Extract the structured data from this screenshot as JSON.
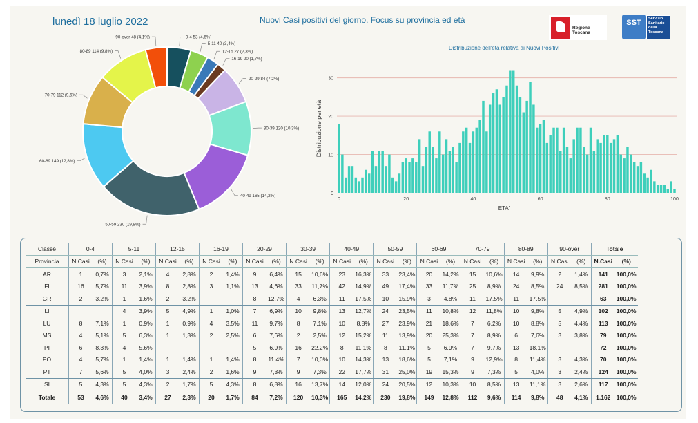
{
  "header": {
    "date": "lunedì 18 luglio 2022",
    "title": "Nuovi Casi positivi del giorno. Focus su provincia ed età",
    "logo_rt_label": "Regione Toscana",
    "logo_sst_mark": "SST",
    "logo_sst_name": [
      "Servizio",
      "Sanitario",
      "della",
      "Toscana"
    ]
  },
  "colors": {
    "accent": "#1e6e9e",
    "bar": "#3ecfbb",
    "grid": "#e7b7b0"
  },
  "chart_data": [
    {
      "type": "pie",
      "title": "",
      "slices": [
        {
          "label": "0-4 53 (4,6%)",
          "value": 53,
          "color": "#16505e"
        },
        {
          "label": "5-11 40 (3,4%)",
          "value": 40,
          "color": "#8ed14f"
        },
        {
          "label": "12-15 27 (2,3%)",
          "value": 27,
          "color": "#3a79b8"
        },
        {
          "label": "16-19 20 (1,7%)",
          "value": 20,
          "color": "#6a3a21"
        },
        {
          "label": "20-29 84 (7,2%)",
          "value": 84,
          "color": "#c9b4e6"
        },
        {
          "label": "30-39 120 (10,3%)",
          "value": 120,
          "color": "#7ee7cf"
        },
        {
          "label": "40-49 165 (14,2%)",
          "value": 165,
          "color": "#9b5ed8"
        },
        {
          "label": "50-59 230 (19,8%)",
          "value": 230,
          "color": "#40626b"
        },
        {
          "label": "60-69 149 (12,8%)",
          "value": 149,
          "color": "#4dc9f1"
        },
        {
          "label": "70-79 112 (9,6%)",
          "value": 112,
          "color": "#d9b04b"
        },
        {
          "label": "80-89 114 (9,8%)",
          "value": 114,
          "color": "#e4f44a"
        },
        {
          "label": "90-over 48 (4,1%)",
          "value": 48,
          "color": "#f24f0a"
        }
      ]
    },
    {
      "type": "bar",
      "title": "Distribuzione dell'età relativa ai Nuovi Positivi",
      "xlabel": "ETA'",
      "ylabel": "Distribuzione per età",
      "xlim": [
        0,
        100
      ],
      "ylim": [
        0,
        33
      ],
      "xticks": [
        0,
        20,
        40,
        60,
        80,
        100
      ],
      "yticks": [
        0,
        10,
        20,
        30
      ],
      "x": [
        0,
        1,
        2,
        3,
        4,
        5,
        6,
        7,
        8,
        9,
        10,
        11,
        12,
        13,
        14,
        15,
        16,
        17,
        18,
        19,
        20,
        21,
        22,
        23,
        24,
        25,
        26,
        27,
        28,
        29,
        30,
        31,
        32,
        33,
        34,
        35,
        36,
        37,
        38,
        39,
        40,
        41,
        42,
        43,
        44,
        45,
        46,
        47,
        48,
        49,
        50,
        51,
        52,
        53,
        54,
        55,
        56,
        57,
        58,
        59,
        60,
        61,
        62,
        63,
        64,
        65,
        66,
        67,
        68,
        69,
        70,
        71,
        72,
        73,
        74,
        75,
        76,
        77,
        78,
        79,
        80,
        81,
        82,
        83,
        84,
        85,
        86,
        87,
        88,
        89,
        90,
        91,
        92,
        93,
        94,
        95,
        96,
        97,
        98,
        99,
        100
      ],
      "values": [
        18,
        10,
        4,
        7,
        7,
        4,
        3,
        4,
        6,
        5,
        11,
        7,
        11,
        11,
        7,
        10,
        4,
        3,
        5,
        8,
        9,
        8,
        9,
        8,
        14,
        7,
        12,
        16,
        12,
        9,
        16,
        10,
        14,
        11,
        12,
        8,
        13,
        16,
        17,
        13,
        16,
        17,
        19,
        24,
        16,
        23,
        26,
        27,
        23,
        25,
        28,
        32,
        32,
        28,
        25,
        21,
        24,
        29,
        23,
        17,
        18,
        19,
        13,
        15,
        17,
        17,
        11,
        17,
        12,
        9,
        14,
        17,
        17,
        12,
        10,
        17,
        11,
        14,
        13,
        15,
        15,
        13,
        14,
        15,
        10,
        9,
        12,
        10,
        8,
        7,
        8,
        5,
        4,
        6,
        3,
        2,
        2,
        2,
        1,
        3,
        1
      ]
    }
  ],
  "table": {
    "groups": [
      "0-4",
      "5-11",
      "12-15",
      "16-19",
      "20-29",
      "30-39",
      "40-49",
      "50-59",
      "60-69",
      "70-79",
      "80-89",
      "90-over"
    ],
    "classe_label": "Classe",
    "totale_label": "Totale",
    "provincia_label": "Provincia",
    "sub_n": "N.Casi",
    "sub_p": "(%)",
    "rows": [
      {
        "prov": "AR",
        "cells": [
          [
            "1",
            "0,7%"
          ],
          [
            "3",
            "2,1%"
          ],
          [
            "4",
            "2,8%"
          ],
          [
            "2",
            "1,4%"
          ],
          [
            "9",
            "6,4%"
          ],
          [
            "15",
            "10,6%"
          ],
          [
            "23",
            "16,3%"
          ],
          [
            "33",
            "23,4%"
          ],
          [
            "20",
            "14,2%"
          ],
          [
            "15",
            "10,6%"
          ],
          [
            "14",
            "9,9%"
          ],
          [
            "2",
            "1,4%"
          ]
        ],
        "tot": [
          "141",
          "100,0%"
        ]
      },
      {
        "prov": "FI",
        "cells": [
          [
            "16",
            "5,7%"
          ],
          [
            "11",
            "3,9%"
          ],
          [
            "8",
            "2,8%"
          ],
          [
            "3",
            "1,1%"
          ],
          [
            "13",
            "4,6%"
          ],
          [
            "33",
            "11,7%"
          ],
          [
            "42",
            "14,9%"
          ],
          [
            "49",
            "17,4%"
          ],
          [
            "33",
            "11,7%"
          ],
          [
            "25",
            "8,9%"
          ],
          [
            "24",
            "8,5%"
          ],
          [
            "24",
            "8,5%"
          ]
        ],
        "tot": [
          "281",
          "100,0%"
        ]
      },
      {
        "prov": "GR",
        "cells": [
          [
            "2",
            "3,2%"
          ],
          [
            "1",
            "1,6%"
          ],
          [
            "2",
            "3,2%"
          ],
          [
            "",
            ""
          ],
          [
            "8",
            "12,7%"
          ],
          [
            "4",
            "6,3%"
          ],
          [
            "11",
            "17,5%"
          ],
          [
            "10",
            "15,9%"
          ],
          [
            "3",
            "4,8%"
          ],
          [
            "11",
            "17,5%"
          ],
          [
            "11",
            "17,5%"
          ],
          [
            "",
            ""
          ]
        ],
        "tot": [
          "63",
          "100,0%"
        ]
      },
      {
        "prov": "LI",
        "cells": [
          [
            "",
            ""
          ],
          [
            "4",
            "3,9%"
          ],
          [
            "5",
            "4,9%"
          ],
          [
            "1",
            "1,0%"
          ],
          [
            "7",
            "6,9%"
          ],
          [
            "10",
            "9,8%"
          ],
          [
            "13",
            "12,7%"
          ],
          [
            "24",
            "23,5%"
          ],
          [
            "11",
            "10,8%"
          ],
          [
            "12",
            "11,8%"
          ],
          [
            "10",
            "9,8%"
          ],
          [
            "5",
            "4,9%"
          ]
        ],
        "tot": [
          "102",
          "100,0%"
        ]
      },
      {
        "prov": "LU",
        "cells": [
          [
            "8",
            "7,1%"
          ],
          [
            "1",
            "0,9%"
          ],
          [
            "1",
            "0,9%"
          ],
          [
            "4",
            "3,5%"
          ],
          [
            "11",
            "9,7%"
          ],
          [
            "8",
            "7,1%"
          ],
          [
            "10",
            "8,8%"
          ],
          [
            "27",
            "23,9%"
          ],
          [
            "21",
            "18,6%"
          ],
          [
            "7",
            "6,2%"
          ],
          [
            "10",
            "8,8%"
          ],
          [
            "5",
            "4,4%"
          ]
        ],
        "tot": [
          "113",
          "100,0%"
        ]
      },
      {
        "prov": "MS",
        "cells": [
          [
            "4",
            "5,1%"
          ],
          [
            "5",
            "6,3%"
          ],
          [
            "1",
            "1,3%"
          ],
          [
            "2",
            "2,5%"
          ],
          [
            "6",
            "7,6%"
          ],
          [
            "2",
            "2,5%"
          ],
          [
            "12",
            "15,2%"
          ],
          [
            "11",
            "13,9%"
          ],
          [
            "20",
            "25,3%"
          ],
          [
            "7",
            "8,9%"
          ],
          [
            "6",
            "7,6%"
          ],
          [
            "3",
            "3,8%"
          ]
        ],
        "tot": [
          "79",
          "100,0%"
        ]
      },
      {
        "prov": "PI",
        "cells": [
          [
            "6",
            "8,3%"
          ],
          [
            "4",
            "5,6%"
          ],
          [
            "",
            ""
          ],
          [
            "",
            ""
          ],
          [
            "5",
            "6,9%"
          ],
          [
            "16",
            "22,2%"
          ],
          [
            "8",
            "11,1%"
          ],
          [
            "8",
            "11,1%"
          ],
          [
            "5",
            "6,9%"
          ],
          [
            "7",
            "9,7%"
          ],
          [
            "13",
            "18,1%"
          ],
          [
            "",
            ""
          ]
        ],
        "tot": [
          "72",
          "100,0%"
        ]
      },
      {
        "prov": "PO",
        "cells": [
          [
            "4",
            "5,7%"
          ],
          [
            "1",
            "1,4%"
          ],
          [
            "1",
            "1,4%"
          ],
          [
            "1",
            "1,4%"
          ],
          [
            "8",
            "11,4%"
          ],
          [
            "7",
            "10,0%"
          ],
          [
            "10",
            "14,3%"
          ],
          [
            "13",
            "18,6%"
          ],
          [
            "5",
            "7,1%"
          ],
          [
            "9",
            "12,9%"
          ],
          [
            "8",
            "11,4%"
          ],
          [
            "3",
            "4,3%"
          ]
        ],
        "tot": [
          "70",
          "100,0%"
        ]
      },
      {
        "prov": "PT",
        "cells": [
          [
            "7",
            "5,6%"
          ],
          [
            "5",
            "4,0%"
          ],
          [
            "3",
            "2,4%"
          ],
          [
            "2",
            "1,6%"
          ],
          [
            "9",
            "7,3%"
          ],
          [
            "9",
            "7,3%"
          ],
          [
            "22",
            "17,7%"
          ],
          [
            "31",
            "25,0%"
          ],
          [
            "19",
            "15,3%"
          ],
          [
            "9",
            "7,3%"
          ],
          [
            "5",
            "4,0%"
          ],
          [
            "3",
            "2,4%"
          ]
        ],
        "tot": [
          "124",
          "100,0%"
        ]
      },
      {
        "prov": "SI",
        "cells": [
          [
            "5",
            "4,3%"
          ],
          [
            "5",
            "4,3%"
          ],
          [
            "2",
            "1,7%"
          ],
          [
            "5",
            "4,3%"
          ],
          [
            "8",
            "6,8%"
          ],
          [
            "16",
            "13,7%"
          ],
          [
            "14",
            "12,0%"
          ],
          [
            "24",
            "20,5%"
          ],
          [
            "12",
            "10,3%"
          ],
          [
            "10",
            "8,5%"
          ],
          [
            "13",
            "11,1%"
          ],
          [
            "3",
            "2,6%"
          ]
        ],
        "tot": [
          "117",
          "100,0%"
        ]
      }
    ],
    "total": {
      "prov": "Totale",
      "cells": [
        [
          "53",
          "4,6%"
        ],
        [
          "40",
          "3,4%"
        ],
        [
          "27",
          "2,3%"
        ],
        [
          "20",
          "1,7%"
        ],
        [
          "84",
          "7,2%"
        ],
        [
          "120",
          "10,3%"
        ],
        [
          "165",
          "14,2%"
        ],
        [
          "230",
          "19,8%"
        ],
        [
          "149",
          "12,8%"
        ],
        [
          "112",
          "9,6%"
        ],
        [
          "114",
          "9,8%"
        ],
        [
          "48",
          "4,1%"
        ]
      ],
      "tot": [
        "1.162",
        "100,0%"
      ]
    }
  }
}
